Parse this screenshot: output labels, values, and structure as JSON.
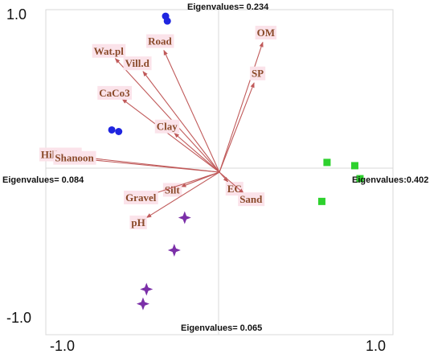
{
  "chart_data": {
    "type": "scatter",
    "title": "",
    "xlim": [
      -1.0,
      1.0
    ],
    "ylim": [
      -1.0,
      1.0
    ],
    "x_ticks": [
      "-1.0",
      "1.0"
    ],
    "y_ticks": [
      "1.0",
      "-1.0"
    ],
    "grid": false,
    "axis_labels": {
      "top": "Eigenvalues= 0.234",
      "left": "Eigenvalues= 0.084",
      "right": "Eigenvalues:0.402",
      "bottom": "Eigenvalues= 0.065"
    },
    "vectors": [
      {
        "label": "OM",
        "x": 0.25,
        "y": 0.8
      },
      {
        "label": "SP",
        "x": 0.2,
        "y": 0.55
      },
      {
        "label": "Road",
        "x": -0.32,
        "y": 0.75
      },
      {
        "label": "Wat.pl",
        "x": -0.6,
        "y": 0.7
      },
      {
        "label": "Vill.d",
        "x": -0.44,
        "y": 0.62
      },
      {
        "label": "CaCo3",
        "x": -0.56,
        "y": 0.45
      },
      {
        "label": "Clay",
        "x": -0.26,
        "y": 0.24
      },
      {
        "label": "Hill( N1)",
        "x": -0.86,
        "y": 0.1
      },
      {
        "label": "Shanoon",
        "x": -0.78,
        "y": 0.08
      },
      {
        "label": "Silt",
        "x": -0.22,
        "y": -0.09
      },
      {
        "label": "Gravel",
        "x": -0.4,
        "y": -0.14
      },
      {
        "label": "pH",
        "x": -0.42,
        "y": -0.28
      },
      {
        "label": "EC",
        "x": 0.05,
        "y": -0.06
      },
      {
        "label": "Sand",
        "x": 0.14,
        "y": -0.13
      }
    ],
    "series": [
      {
        "marker": "circle",
        "color": "#1f25e0",
        "points": [
          [
            -0.31,
            0.96
          ],
          [
            -0.3,
            0.93
          ],
          [
            -0.62,
            0.26
          ],
          [
            -0.58,
            0.25
          ]
        ]
      },
      {
        "marker": "square",
        "color": "#2ed12e",
        "points": [
          [
            0.62,
            0.06
          ],
          [
            0.78,
            0.04
          ],
          [
            0.81,
            -0.04
          ],
          [
            0.59,
            -0.18
          ]
        ]
      },
      {
        "marker": "star",
        "color": "#7b2fa8",
        "points": [
          [
            -0.2,
            -0.28
          ],
          [
            -0.26,
            -0.48
          ],
          [
            -0.42,
            -0.72
          ],
          [
            -0.44,
            -0.81
          ]
        ]
      }
    ]
  },
  "colors": {
    "arrow": "#c05a5a",
    "label_text": "#8a4a2a",
    "label_bg": "#fbe3ea",
    "frame": "#d9d9d9"
  }
}
